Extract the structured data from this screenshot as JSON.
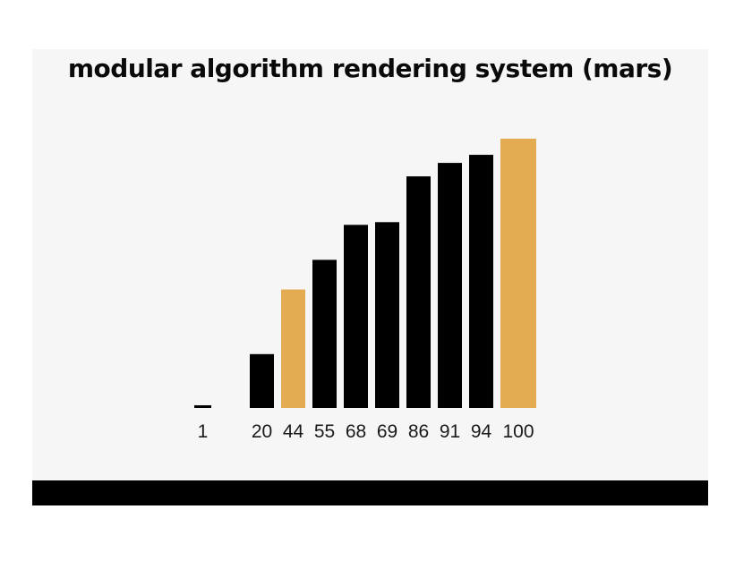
{
  "title": "modular algorithm rendering system (mars)",
  "chart_data": {
    "type": "bar",
    "categories": [
      "1",
      "20",
      "44",
      "55",
      "68",
      "69",
      "86",
      "91",
      "94",
      "100"
    ],
    "values": [
      1,
      20,
      44,
      55,
      68,
      69,
      86,
      91,
      94,
      100
    ],
    "highlighted": [
      "44",
      "100"
    ],
    "title": "modular algorithm rendering system (mars)",
    "xlabel": "",
    "ylabel": "",
    "ylim": [
      0,
      100
    ],
    "grid": false,
    "colors": {
      "default": "#000000",
      "highlight": "#e3ab52"
    }
  }
}
